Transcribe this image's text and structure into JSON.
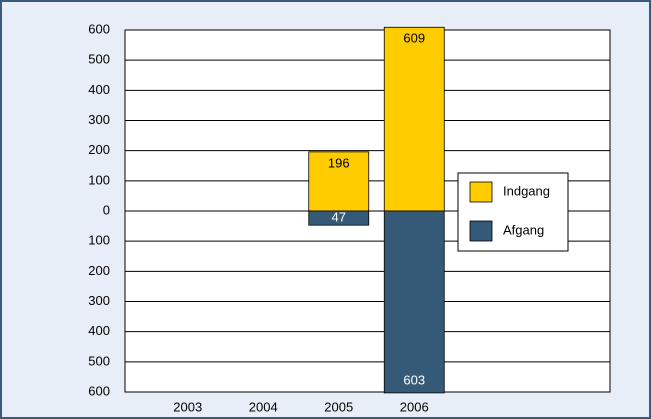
{
  "chart_data": {
    "type": "bar",
    "categories": [
      "2003",
      "2004",
      "2005",
      "2006"
    ],
    "series": [
      {
        "name": "Indgang",
        "color": "#ffcc00",
        "values": [
          null,
          null,
          196,
          609
        ]
      },
      {
        "name": "Afgang",
        "color": "#355a78",
        "values": [
          null,
          null,
          -47,
          -603
        ],
        "value_labels": [
          null,
          null,
          "47",
          "603"
        ]
      }
    ],
    "ylim": [
      -600,
      600
    ],
    "yticks": [
      {
        "value": -600,
        "label": "600"
      },
      {
        "value": -500,
        "label": "500"
      },
      {
        "value": -400,
        "label": "400"
      },
      {
        "value": -300,
        "label": "300"
      },
      {
        "value": -200,
        "label": "200"
      },
      {
        "value": -100,
        "label": "100"
      },
      0,
      100,
      200,
      300,
      400,
      500,
      600
    ],
    "grid": true,
    "legend": "right"
  }
}
